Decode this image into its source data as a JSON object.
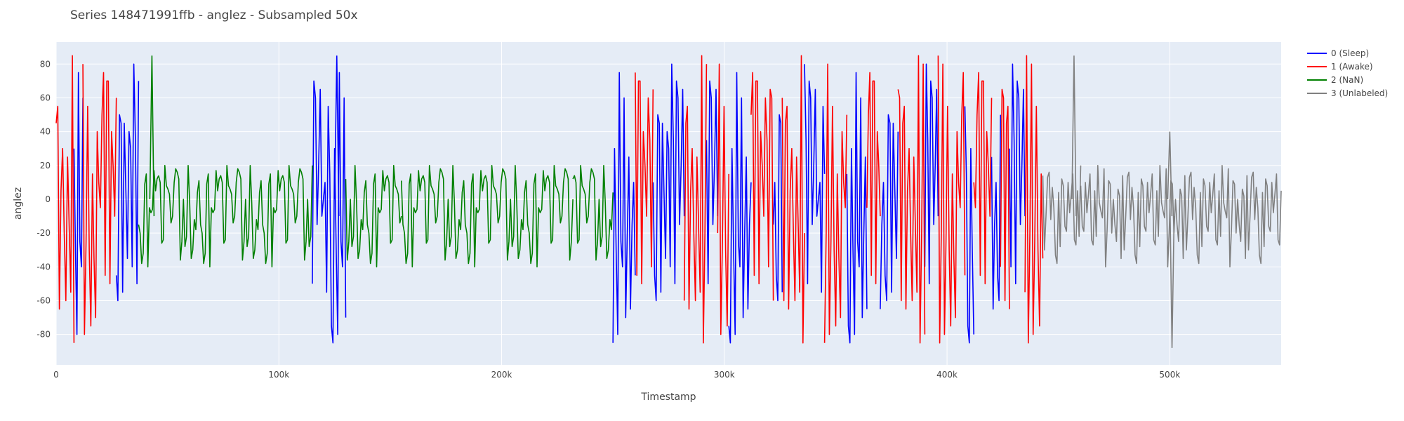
{
  "chart_data": {
    "type": "line",
    "title": "Series 148471991ffb - anglez - Subsampled 50x",
    "xlabel": "Timestamp",
    "ylabel": "anglez",
    "xlim": [
      0,
      550000
    ],
    "ylim": [
      -98,
      93
    ],
    "x_ticks": [
      {
        "value": 0,
        "label": "0"
      },
      {
        "value": 100000,
        "label": "100k"
      },
      {
        "value": 200000,
        "label": "200k"
      },
      {
        "value": 300000,
        "label": "300k"
      },
      {
        "value": 400000,
        "label": "400k"
      },
      {
        "value": 500000,
        "label": "500k"
      }
    ],
    "y_ticks": [
      -80,
      -60,
      -40,
      -20,
      0,
      20,
      40,
      60,
      80
    ],
    "grid": true,
    "legend_position": "top-right",
    "series": [
      {
        "name": "0 (Sleep)",
        "color": "#0000ff",
        "segments": [
          [
            8000,
            12000
          ],
          [
            27000,
            37000
          ],
          [
            115000,
            130000
          ],
          [
            250000,
            260000
          ],
          [
            268000,
            282000
          ],
          [
            292000,
            297000
          ],
          [
            302000,
            312000
          ],
          [
            322000,
            326000
          ],
          [
            336000,
            345000
          ],
          [
            355000,
            364000
          ],
          [
            370000,
            378000
          ],
          [
            390000,
            396000
          ],
          [
            408000,
            412000
          ],
          [
            420000,
            424000
          ],
          [
            428000,
            435000
          ]
        ],
        "y": [
          30,
          -40,
          60,
          -15,
          10,
          -55,
          45,
          -30,
          80,
          -70,
          20,
          -45,
          55,
          5,
          -80,
          35,
          -20,
          65,
          -60,
          15,
          -35,
          75,
          -50,
          25,
          -10,
          50,
          -75,
          40,
          -25,
          70,
          -65,
          0,
          45,
          -85,
          30,
          -40,
          60,
          -15,
          10,
          -55
        ]
      },
      {
        "name": "1 (Awake)",
        "color": "#ff0000",
        "segments": [
          [
            0,
            8000
          ],
          [
            12000,
            27000
          ],
          [
            260000,
            268000
          ],
          [
            282000,
            292000
          ],
          [
            297000,
            302000
          ],
          [
            312000,
            322000
          ],
          [
            326000,
            336000
          ],
          [
            345000,
            355000
          ],
          [
            364000,
            370000
          ],
          [
            378000,
            390000
          ],
          [
            396000,
            408000
          ],
          [
            412000,
            420000
          ],
          [
            424000,
            428000
          ],
          [
            435000,
            443000
          ]
        ],
        "y": [
          -85,
          60,
          -30,
          45,
          10,
          -60,
          70,
          -20,
          35,
          -75,
          55,
          -5,
          25,
          -50,
          80,
          -40,
          15,
          -65,
          50,
          -15,
          40,
          -80,
          65,
          -35,
          5,
          75,
          -55,
          20,
          -25,
          60,
          -70,
          30,
          -45,
          85,
          -10,
          55,
          -60,
          40,
          -20,
          70
        ]
      },
      {
        "name": "2 (NaN)",
        "color": "#008000",
        "segments": [
          [
            37000,
            46000
          ],
          [
            46000,
            115000
          ],
          [
            130000,
            155000
          ],
          [
            155000,
            232000
          ],
          [
            232000,
            250000
          ]
        ],
        "y": [
          -10,
          15,
          -25,
          5,
          -35,
          20,
          -15,
          10,
          -40,
          0,
          12,
          -30,
          8,
          -20,
          18,
          -5,
          -28,
          14,
          -12,
          6,
          -38,
          16,
          -8,
          -22,
          10,
          -18,
          3,
          -32,
          12,
          -6,
          20,
          -26,
          4,
          -14,
          9,
          -36,
          17,
          -2,
          -24,
          11
        ]
      },
      {
        "name": "3 (Unlabeled)",
        "color": "#808080",
        "segments": [
          [
            443000,
            460000
          ],
          [
            460000,
            550000
          ]
        ],
        "y": [
          -20,
          10,
          -35,
          5,
          -12,
          18,
          -28,
          0,
          -8,
          14,
          -22,
          7,
          -40,
          12,
          -15,
          3,
          -30,
          20,
          -5,
          -18,
          8,
          -25,
          15,
          -10,
          -2,
          -33,
          11,
          -16,
          6,
          -24,
          13,
          -7,
          -38,
          9,
          -19,
          2,
          -27,
          16,
          -11,
          4
        ]
      }
    ],
    "features": [
      {
        "series": "3 (Unlabeled)",
        "x": 457000,
        "y": 85
      },
      {
        "series": "3 (Unlabeled)",
        "x": 500000,
        "y": 40
      },
      {
        "series": "3 (Unlabeled)",
        "x": 501000,
        "y": -88
      },
      {
        "series": "2 (NaN)",
        "x": 43000,
        "y": 85
      },
      {
        "series": "0 (Sleep)",
        "x": 126000,
        "y": 85
      }
    ]
  }
}
